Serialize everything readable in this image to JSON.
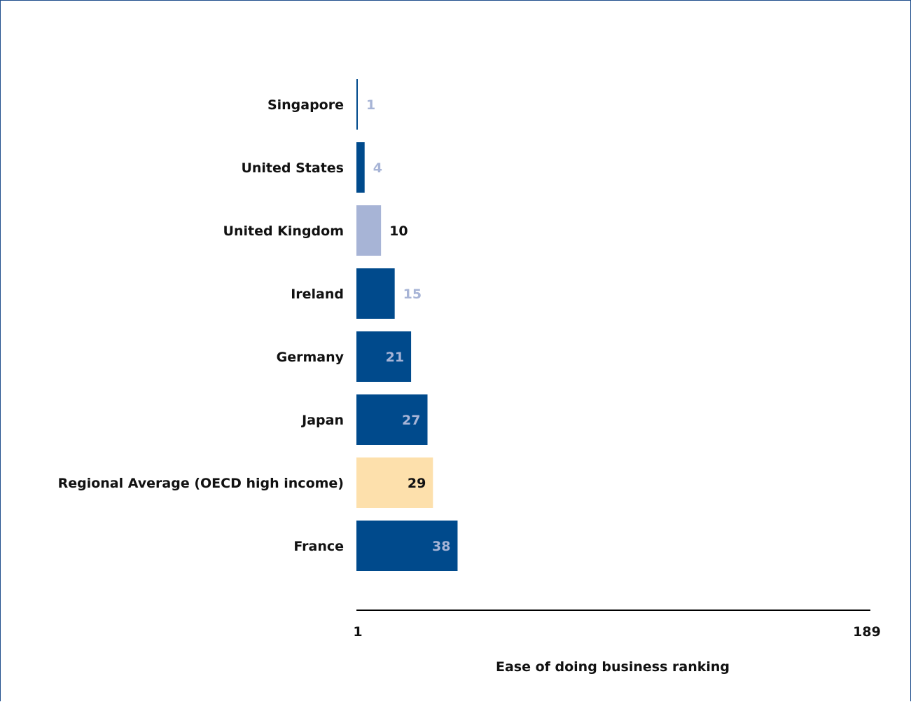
{
  "chart_data": {
    "type": "bar",
    "orientation": "horizontal",
    "categories": [
      "Singapore",
      "United States",
      "United Kingdom",
      "Ireland",
      "Germany",
      "Japan",
      "Regional Average (OECD high income)",
      "France"
    ],
    "values": [
      1,
      4,
      10,
      15,
      21,
      27,
      29,
      38
    ],
    "bar_colors": [
      "#004a8c",
      "#004a8c",
      "#a7b4d6",
      "#004a8c",
      "#004a8c",
      "#004a8c",
      "#fde0ac",
      "#004a8c"
    ],
    "label_colors": [
      "#a7b4d6",
      "#a7b4d6",
      "#111111",
      "#a7b4d6",
      "#a7b4d6",
      "#a7b4d6",
      "#111111",
      "#a7b4d6"
    ],
    "xlabel": "Ease of doing business ranking",
    "xlim": [
      1,
      189
    ],
    "xtick_labels": [
      "1",
      "189"
    ],
    "grid": false,
    "legend": "none"
  }
}
